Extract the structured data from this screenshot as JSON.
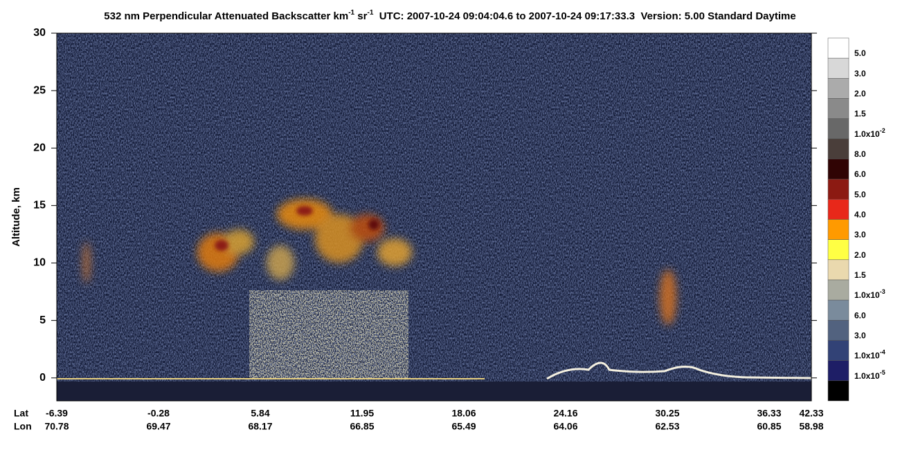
{
  "chart_data": {
    "type": "heatmap",
    "title": [
      {
        "text": "532 nm Perpendicular Attenuated Backscatter km"
      },
      {
        "sup": "-1"
      },
      {
        "text": " sr"
      },
      {
        "sup": "-1"
      },
      {
        "text": "  UTC: 2007-10-24 09:04:04.6 to 2007-10-24 09:17:33.3  Version: 5.00 Standard Daytime"
      }
    ],
    "ylabel": "Altitude, km",
    "ylim": [
      -2,
      30
    ],
    "yticks": [
      0,
      5,
      10,
      15,
      20,
      25,
      30
    ],
    "x_rows": [
      {
        "name": "Lat",
        "labels": [
          "-6.39",
          "-0.28",
          "5.84",
          "11.95",
          "18.06",
          "24.16",
          "30.25",
          "36.33",
          "42.33"
        ]
      },
      {
        "name": "Lon",
        "labels": [
          "70.78",
          "69.47",
          "68.17",
          "66.85",
          "65.49",
          "64.06",
          "62.53",
          "60.85",
          "58.98"
        ]
      }
    ],
    "colorbar": {
      "colors": [
        "#ffffff",
        "#d8d8d8",
        "#ababab",
        "#8a8a8a",
        "#686868",
        "#4a3e3a",
        "#300404",
        "#8c1a12",
        "#e8281a",
        "#ff9a00",
        "#ffff44",
        "#ead9ae",
        "#a9aba0",
        "#7a8b9c",
        "#52627f",
        "#324276",
        "#1e1e66",
        "#000000"
      ],
      "labels": [
        {
          "text": "5.0"
        },
        {
          "text": "3.0"
        },
        {
          "text": "2.0"
        },
        {
          "text": "1.5"
        },
        {
          "text": "1.0x10",
          "sup": "-2"
        },
        {
          "text": "8.0"
        },
        {
          "text": "6.0"
        },
        {
          "text": "5.0"
        },
        {
          "text": "4.0"
        },
        {
          "text": "3.0"
        },
        {
          "text": "2.0"
        },
        {
          "text": "1.5"
        },
        {
          "text": "1.0x10",
          "sup": "-3"
        },
        {
          "text": "6.0"
        },
        {
          "text": "3.0"
        },
        {
          "text": "1.0x10",
          "sup": "-4"
        },
        {
          "text": "1.0x10",
          "sup": "-5"
        }
      ]
    }
  }
}
